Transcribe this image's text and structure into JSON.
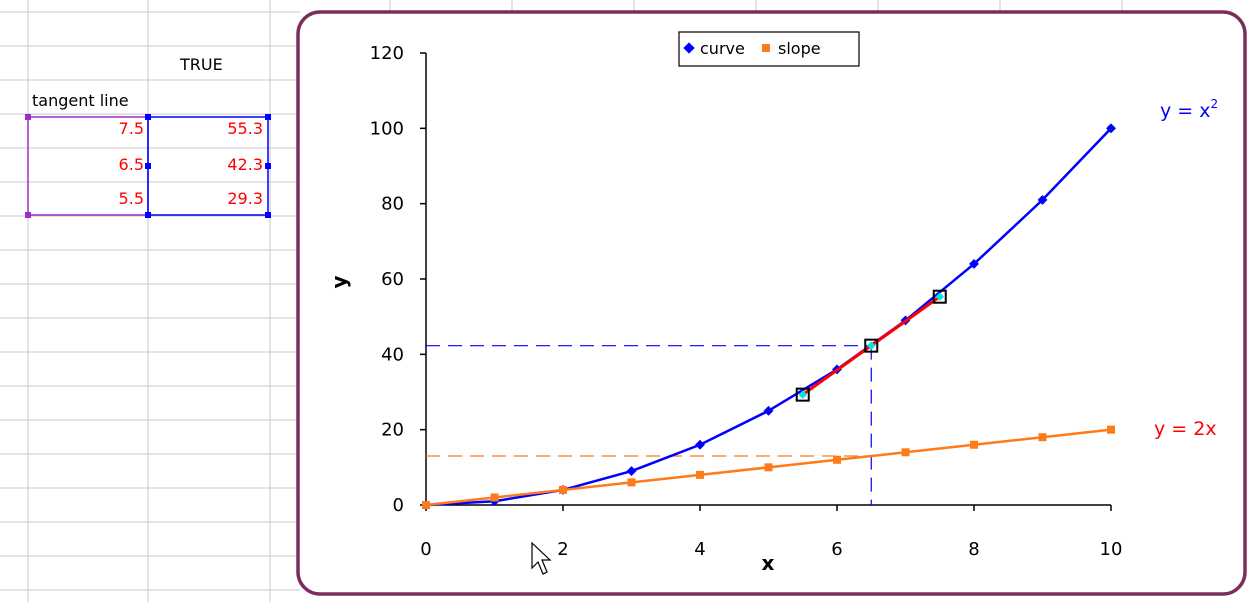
{
  "spreadsheet": {
    "header_value": "TRUE",
    "row_label": "tangent line",
    "rows": [
      {
        "x": "7.5",
        "y": "55.3"
      },
      {
        "x": "6.5",
        "y": "42.3"
      },
      {
        "x": "5.5",
        "y": "29.3"
      }
    ]
  },
  "colors": {
    "curve": "#0000ff",
    "slope": "#ff7a1a",
    "tangent": "#ff0000",
    "chart_border": "#7b2d5e",
    "grid": "#c8c8c8"
  },
  "chart_data": {
    "type": "line",
    "xlabel": "x",
    "ylabel": "y",
    "xlim": [
      0,
      10
    ],
    "ylim": [
      0,
      120
    ],
    "x_ticks": [
      0,
      2,
      4,
      6,
      8,
      10
    ],
    "y_ticks": [
      0,
      20,
      40,
      60,
      80,
      100,
      120
    ],
    "legend": {
      "position": "top-center",
      "entries": [
        "curve",
        "slope"
      ]
    },
    "series": [
      {
        "name": "curve",
        "x": [
          0,
          1,
          2,
          3,
          4,
          5,
          6,
          7,
          8,
          9,
          10
        ],
        "values": [
          0,
          1,
          4,
          9,
          16,
          25,
          36,
          49,
          64,
          81,
          100
        ],
        "marker": "diamond",
        "color": "#0000ff"
      },
      {
        "name": "slope",
        "x": [
          0,
          1,
          2,
          3,
          4,
          5,
          6,
          7,
          8,
          9,
          10
        ],
        "values": [
          0,
          2,
          4,
          6,
          8,
          10,
          12,
          14,
          16,
          18,
          20
        ],
        "marker": "square",
        "color": "#ff7a1a"
      }
    ],
    "tangent_line": {
      "x": [
        5.5,
        6.5,
        7.5
      ],
      "values": [
        29.3,
        42.3,
        55.3
      ],
      "color": "#ff0000"
    },
    "guide_lines": {
      "x": 6.5,
      "curve_y": 42.3,
      "slope_y": 13
    },
    "annotations": {
      "curve_eq": "y = x",
      "curve_eq_exp": "2",
      "slope_eq": "y = 2x"
    }
  }
}
